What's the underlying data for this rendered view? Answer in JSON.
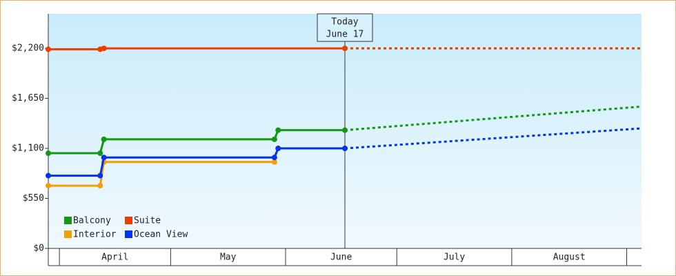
{
  "chart_data": {
    "type": "line",
    "ylim": [
      0,
      2580
    ],
    "yticks": [
      {
        "value": 0,
        "label": "$0"
      },
      {
        "value": 550,
        "label": "$550"
      },
      {
        "value": 1100,
        "label": "$1,100"
      },
      {
        "value": 1650,
        "label": "$1,650"
      },
      {
        "value": 2200,
        "label": "$2,200"
      }
    ],
    "xlim": [
      -3,
      157
    ],
    "xticks": [
      0,
      30,
      61,
      91,
      122,
      153
    ],
    "categories": [
      "April",
      "May",
      "June",
      "July",
      "August"
    ],
    "today": {
      "label": "Today",
      "date": "June 17",
      "x": 77
    },
    "series": [
      {
        "name": "Balcony",
        "color": "#119911",
        "x": [
          -3,
          11,
          12,
          58,
          59,
          77,
          157
        ],
        "values": [
          1047,
          1047,
          1200,
          1200,
          1300,
          1300,
          1560
        ]
      },
      {
        "name": "Suite",
        "color": "#f03c00",
        "x": [
          -3,
          11,
          12,
          77,
          157
        ],
        "values": [
          2190,
          2190,
          2200,
          2200,
          2200
        ]
      },
      {
        "name": "Interior",
        "color": "#f5a000",
        "x": [
          -3,
          11,
          12,
          58
        ],
        "values": [
          690,
          690,
          950,
          950
        ]
      },
      {
        "name": "Ocean View",
        "color": "#0033ee",
        "x": [
          -3,
          11,
          12,
          58,
          59,
          77,
          157
        ],
        "values": [
          800,
          800,
          1000,
          1000,
          1100,
          1100,
          1320
        ]
      }
    ]
  }
}
